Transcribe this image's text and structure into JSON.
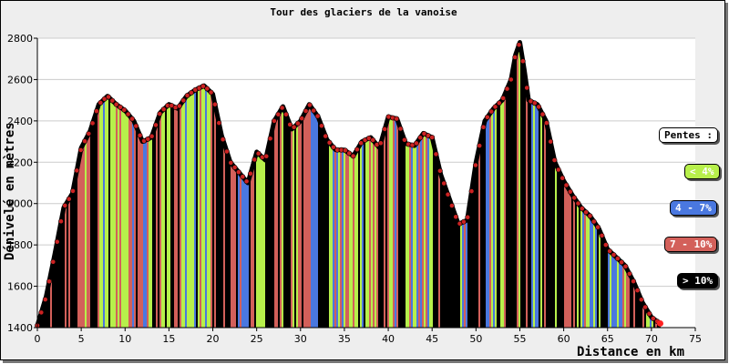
{
  "chart_data": {
    "type": "area",
    "title": "Tour des glaciers de la vanoise",
    "xlabel": "Distance en km",
    "ylabel": "Dénivelé en mètres",
    "xlim": [
      0,
      75
    ],
    "ylim": [
      1400,
      2800
    ],
    "x_ticks": [
      "0",
      "5",
      "10",
      "15",
      "20",
      "25",
      "30",
      "35",
      "40",
      "45",
      "50",
      "55",
      "60",
      "65",
      "70",
      "75"
    ],
    "y_ticks": [
      "1400",
      "1600",
      "1800",
      "2000",
      "2200",
      "2400",
      "2600",
      "2800"
    ],
    "grid": "horizontal",
    "legend_placement": "right",
    "profile": {
      "x": [
        0,
        1,
        2,
        3,
        4,
        5,
        6,
        7,
        8,
        9,
        10,
        11,
        12,
        13,
        14,
        15,
        16,
        17,
        18,
        19,
        20,
        21,
        22,
        23,
        24,
        25,
        26,
        27,
        28,
        29,
        30,
        31,
        32,
        33,
        34,
        35,
        36,
        37,
        38,
        39,
        40,
        41,
        42,
        43,
        44,
        45,
        46,
        47,
        48,
        49,
        50,
        51,
        52,
        53,
        54,
        54.5,
        55,
        55.5,
        56,
        57,
        58,
        59,
        60,
        61,
        62,
        63,
        64,
        65,
        66,
        67,
        68,
        69,
        70,
        71
      ],
      "y": [
        1410,
        1550,
        1760,
        1980,
        2050,
        2270,
        2350,
        2480,
        2520,
        2480,
        2450,
        2400,
        2300,
        2320,
        2440,
        2480,
        2460,
        2520,
        2550,
        2570,
        2530,
        2330,
        2200,
        2150,
        2100,
        2250,
        2210,
        2400,
        2470,
        2360,
        2400,
        2480,
        2420,
        2310,
        2260,
        2260,
        2230,
        2300,
        2320,
        2270,
        2420,
        2410,
        2290,
        2280,
        2340,
        2320,
        2140,
        2020,
        1900,
        1920,
        2200,
        2400,
        2460,
        2500,
        2600,
        2720,
        2780,
        2650,
        2500,
        2480,
        2400,
        2200,
        2110,
        2040,
        1980,
        1940,
        1880,
        1780,
        1740,
        1700,
        1620,
        1520,
        1450,
        1420
      ]
    },
    "slope_classes": [
      {
        "label": "< 4%",
        "color": "#b7f04b"
      },
      {
        "label": "4 - 7%",
        "color": "#4a78e0"
      },
      {
        "label": "7 - 10%",
        "color": "#d3605a"
      },
      {
        "label": "> 10%",
        "color": "#000000"
      }
    ]
  },
  "legend": {
    "header": "Pentes :",
    "items": [
      "< 4%",
      "4 - 7%",
      "7 - 10%",
      "> 10%"
    ]
  }
}
